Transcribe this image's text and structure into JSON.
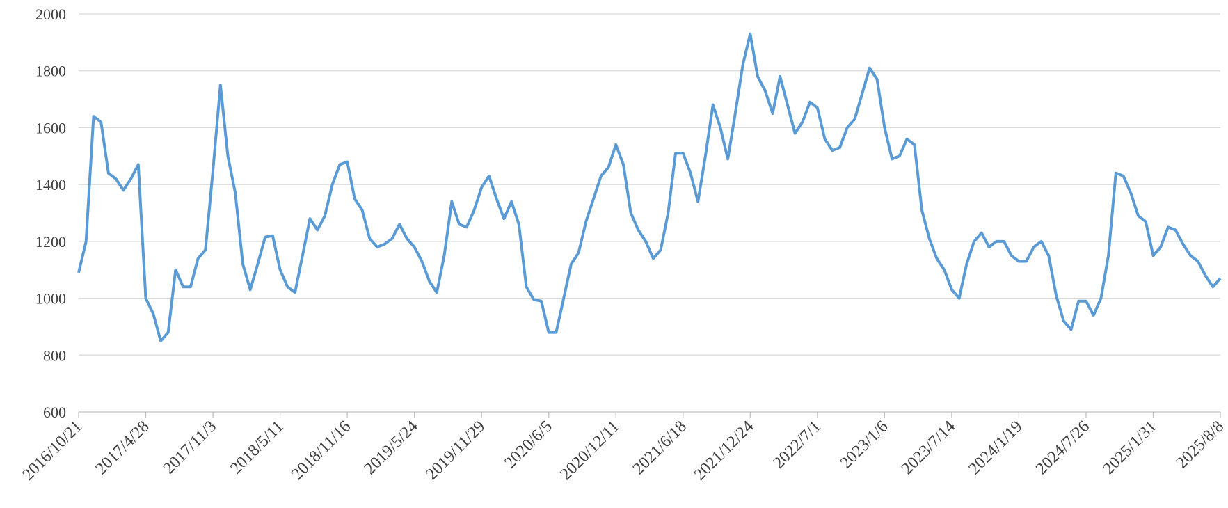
{
  "chart_data": {
    "type": "line",
    "categories": [
      "2016/10/21",
      null,
      null,
      null,
      null,
      null,
      null,
      null,
      null,
      "2017/4/28",
      null,
      null,
      null,
      null,
      null,
      null,
      null,
      null,
      "2017/11/3",
      null,
      null,
      null,
      null,
      null,
      null,
      null,
      null,
      "2018/5/11",
      null,
      null,
      null,
      null,
      null,
      null,
      null,
      null,
      "2018/11/16",
      null,
      null,
      null,
      null,
      null,
      null,
      null,
      null,
      "2019/5/24",
      null,
      null,
      null,
      null,
      null,
      null,
      null,
      null,
      "2019/11/29",
      null,
      null,
      null,
      null,
      null,
      null,
      null,
      null,
      "2020/6/5",
      null,
      null,
      null,
      null,
      null,
      null,
      null,
      null,
      "2020/12/11",
      null,
      null,
      null,
      null,
      null,
      null,
      null,
      null,
      "2021/6/18",
      null,
      null,
      null,
      null,
      null,
      null,
      null,
      null,
      "2021/12/24",
      null,
      null,
      null,
      null,
      null,
      null,
      null,
      null,
      "2022/7/1",
      null,
      null,
      null,
      null,
      null,
      null,
      null,
      null,
      "2023/1/6",
      null,
      null,
      null,
      null,
      null,
      null,
      null,
      null,
      "2023/7/14",
      null,
      null,
      null,
      null,
      null,
      null,
      null,
      null,
      "2024/1/19",
      null,
      null,
      null,
      null,
      null,
      null,
      null,
      null,
      "2024/7/26",
      null,
      null,
      null,
      null,
      null,
      null,
      null,
      null,
      "2025/1/31",
      null,
      null,
      null,
      null,
      null,
      null,
      null,
      null,
      "2025/8/8"
    ],
    "series": [
      {
        "color": "#5b9bd5",
        "values": [
          1090,
          1200,
          1640,
          1620,
          1440,
          1420,
          1380,
          1420,
          1470,
          1000,
          945,
          850,
          880,
          1100,
          1040,
          1040,
          1140,
          1170,
          1450,
          1750,
          1500,
          1370,
          1120,
          1030,
          1120,
          1215,
          1220,
          1100,
          1040,
          1020,
          1150,
          1280,
          1240,
          1290,
          1400,
          1470,
          1480,
          1350,
          1310,
          1210,
          1180,
          1190,
          1210,
          1260,
          1210,
          1180,
          1130,
          1060,
          1020,
          1150,
          1340,
          1260,
          1250,
          1310,
          1390,
          1430,
          1350,
          1280,
          1340,
          1260,
          1040,
          995,
          990,
          880,
          880,
          1000,
          1120,
          1160,
          1270,
          1350,
          1430,
          1460,
          1540,
          1470,
          1300,
          1240,
          1200,
          1140,
          1170,
          1300,
          1510,
          1510,
          1440,
          1340,
          1500,
          1680,
          1600,
          1490,
          1650,
          1820,
          1930,
          1780,
          1730,
          1650,
          1780,
          1680,
          1580,
          1620,
          1690,
          1670,
          1560,
          1520,
          1530,
          1600,
          1630,
          1720,
          1810,
          1770,
          1600,
          1490,
          1500,
          1560,
          1540,
          1310,
          1210,
          1140,
          1100,
          1030,
          1000,
          1120,
          1200,
          1230,
          1180,
          1200,
          1200,
          1150,
          1130,
          1130,
          1180,
          1200,
          1150,
          1010,
          920,
          890,
          990,
          990,
          940,
          1000,
          1150,
          1440,
          1430,
          1370,
          1290,
          1270,
          1150,
          1180,
          1250,
          1240,
          1190,
          1150,
          1130,
          1080,
          1040,
          1070
        ]
      }
    ],
    "ylim": [
      600,
      2000
    ],
    "yticks": [
      600,
      800,
      1000,
      1200,
      1400,
      1600,
      1800,
      2000
    ],
    "grid": true
  }
}
